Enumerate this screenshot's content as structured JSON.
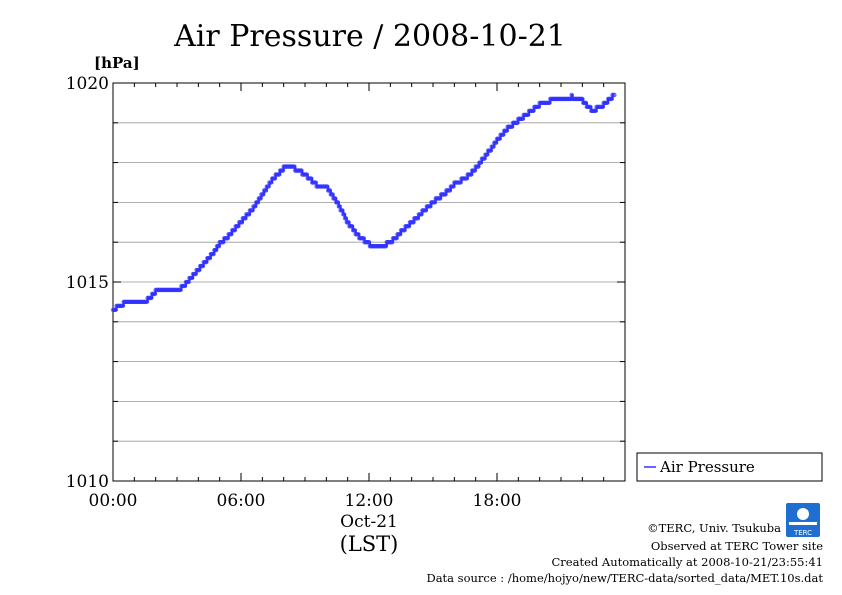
{
  "chart_data": {
    "type": "line",
    "title": "Air Pressure / 2008-10-21",
    "ylabel": "[hPa]",
    "ylim": [
      1010,
      1020
    ],
    "yticks": [
      1010,
      1015,
      1020
    ],
    "xlim": [
      0,
      24
    ],
    "xticks": [
      {
        "value": 0,
        "label": "00:00"
      },
      {
        "value": 6,
        "label": "06:00"
      },
      {
        "value": 12,
        "label": "12:00"
      },
      {
        "value": 18,
        "label": "18:00"
      }
    ],
    "xdate_label": "Oct-21",
    "xlabel": "(LST)",
    "grid": true,
    "legend_position": "right",
    "series": [
      {
        "name": "Air Pressure",
        "color": "#3333ff",
        "x": [
          0,
          0.5,
          1,
          1.5,
          2,
          2.5,
          3,
          3.5,
          4,
          4.5,
          5,
          5.5,
          6,
          6.5,
          7,
          7.5,
          8,
          8.5,
          9,
          9.5,
          10,
          10.5,
          11,
          11.5,
          12,
          12.5,
          13,
          13.5,
          14,
          14.5,
          15,
          15.5,
          16,
          16.5,
          17,
          17.5,
          18,
          18.5,
          19,
          19.5,
          20,
          20.5,
          21,
          21.5,
          22,
          22.5,
          23,
          23.5
        ],
        "y": [
          1014.3,
          1014.45,
          1014.5,
          1014.5,
          1014.75,
          1014.75,
          1014.75,
          1015.0,
          1015.3,
          1015.6,
          1015.95,
          1016.2,
          1016.5,
          1016.8,
          1017.2,
          1017.6,
          1017.85,
          1017.85,
          1017.7,
          1017.45,
          1017.4,
          1017.0,
          1016.5,
          1016.15,
          1015.95,
          1015.85,
          1016.0,
          1016.25,
          1016.5,
          1016.75,
          1017.0,
          1017.2,
          1017.45,
          1017.6,
          1017.85,
          1018.2,
          1018.55,
          1018.85,
          1019.05,
          1019.25,
          1019.45,
          1019.55,
          1019.6,
          1019.65,
          1019.55,
          1019.3,
          1019.45,
          1019.7
        ]
      }
    ]
  },
  "credits": {
    "copyright": "©TERC, Univ. Tsukuba",
    "observed": "Observed at TERC Tower site",
    "created": "Created Automatically at 2008-10-21/23:55:41",
    "source": "Data source : /home/hojyo/new/TERC-data/sorted_data/MET.10s.dat",
    "logo_text": "TERC"
  }
}
